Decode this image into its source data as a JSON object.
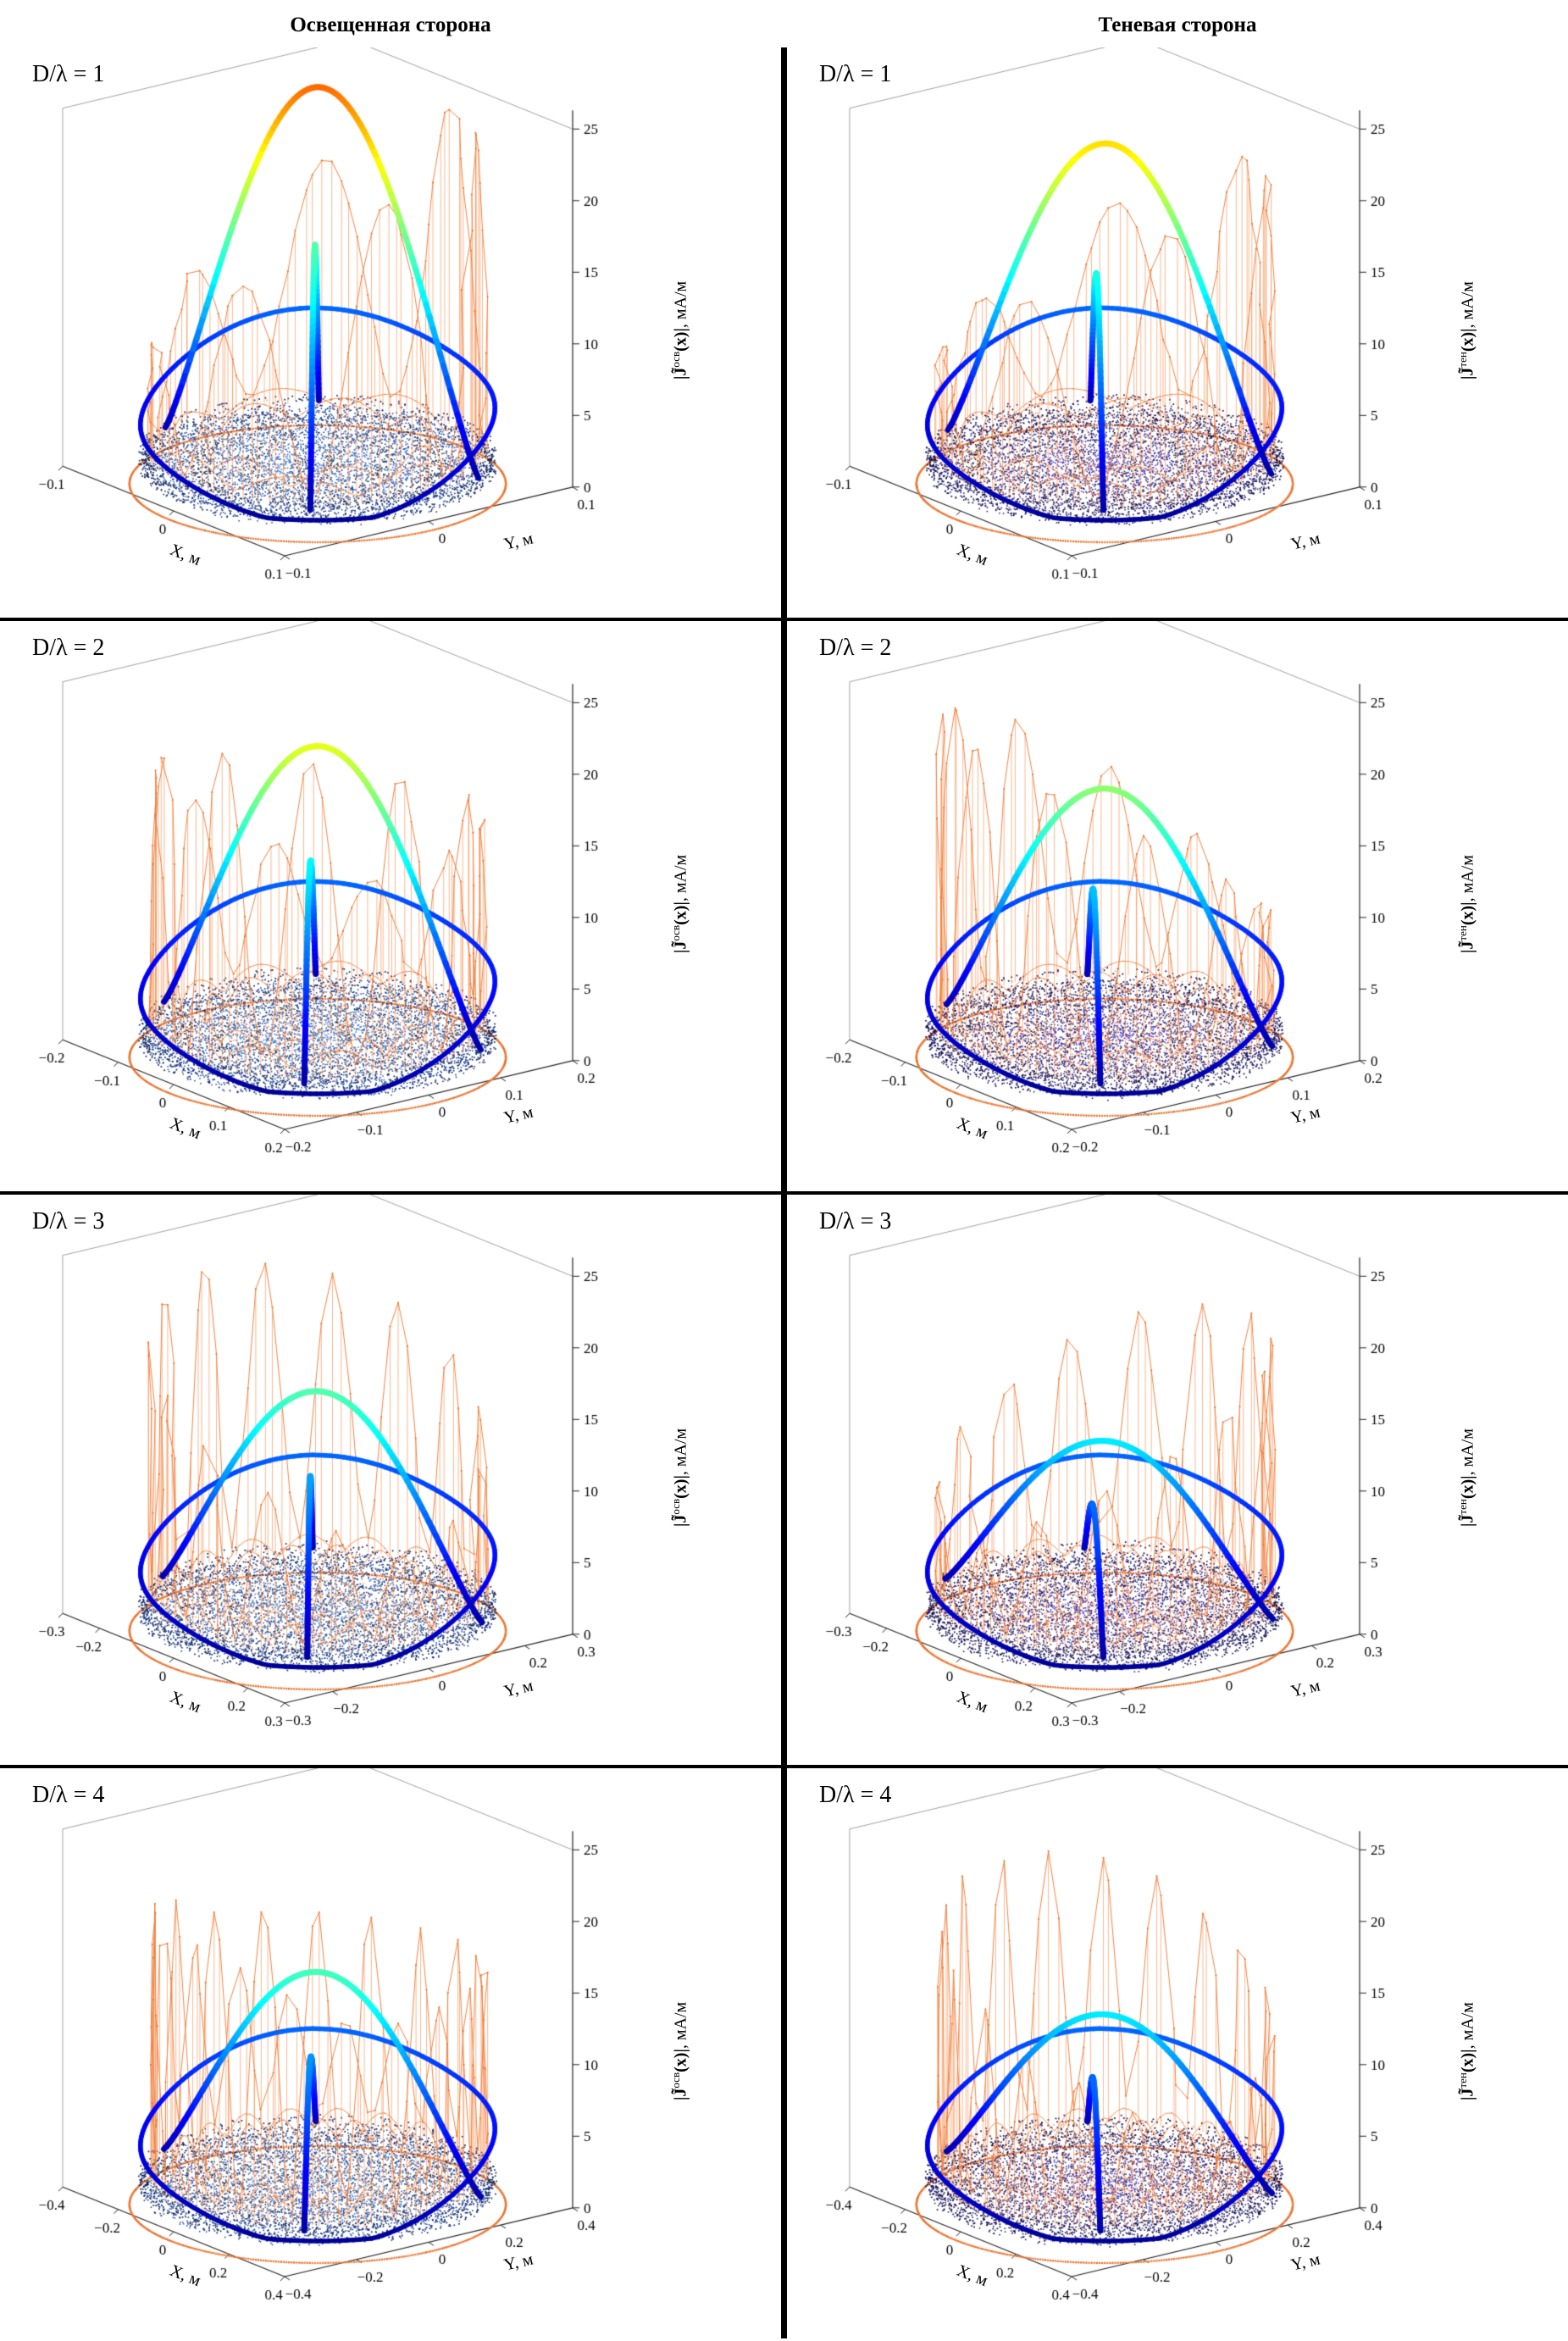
{
  "figure": {
    "column_titles": [
      "Освещенная сторона",
      "Теневая сторона"
    ],
    "row_labels": [
      "D/λ = 1",
      "D/λ = 2",
      "D/λ = 3",
      "D/λ = 4"
    ]
  },
  "chart_data": [
    {
      "type": "scatter",
      "projection": "3d",
      "title": "D/λ = 1",
      "column": "Освещенная сторона",
      "xlabel": "X, м",
      "ylabel": "Y, м",
      "zlabel": "|J̃осв(x)|, мА/м",
      "zlabel_parts": {
        "p1": "|J̃",
        "sup": "осв",
        "p2": "(x)|",
        "p3": ", мА/м"
      },
      "xlim": [
        -0.1,
        0.1
      ],
      "ylim": [
        -0.1,
        0.1
      ],
      "zlim": [
        0,
        25
      ],
      "xticks": [
        -0.1,
        0,
        0.1
      ],
      "yticks": [
        -0.1,
        0,
        0.1
      ],
      "zticks": [
        0,
        5,
        10,
        15,
        20,
        25
      ],
      "series": {
        "disk_cloud": {
          "desc": "плотное облако точек тока на диске",
          "palette": "blue",
          "z_level_max": 3
        },
        "base_ring": {
          "color": "#f5823f",
          "radius_m": 0.1,
          "z": 0
        },
        "rim_stems": {
          "color": "#ee7c3a",
          "n_lobes": 7,
          "peak": 25
        },
        "cut_arches": {
          "colormap": "jet",
          "peaks": [
            27,
            16
          ]
        },
        "rim_loop": {
          "colormap": "jet",
          "height_range": [
            1,
            7.5
          ]
        }
      },
      "render": {
        "seed": 11,
        "disk_palette": "blue",
        "m": 7,
        "ripples": 3,
        "disk_freq": 3.5,
        "speckles": 260,
        "stem_max": 25,
        "arches": [
          [
            27,
            202,
            28
          ],
          [
            16,
            142,
            320
          ]
        ]
      }
    },
    {
      "type": "scatter",
      "projection": "3d",
      "title": "D/λ = 1",
      "column": "Теневая сторона",
      "xlabel": "X, м",
      "ylabel": "Y, м",
      "zlabel": "|J̃тен(x)|, мА/м",
      "zlabel_parts": {
        "p1": "|J̃",
        "sup": "тен",
        "p2": "(x)|",
        "p3": ", мА/м"
      },
      "xlim": [
        -0.1,
        0.1
      ],
      "ylim": [
        -0.1,
        0.1
      ],
      "zlim": [
        0,
        25
      ],
      "xticks": [
        -0.1,
        0,
        0.1
      ],
      "yticks": [
        -0.1,
        0,
        0.1
      ],
      "zticks": [
        0,
        5,
        10,
        15,
        20,
        25
      ],
      "series": {
        "disk_cloud": {
          "desc": "плотное облако точек тока на диске",
          "palette": "indigo",
          "z_level_max": 3
        },
        "base_ring": {
          "color": "#f5823f",
          "radius_m": 0.1,
          "z": 0
        },
        "rim_stems": {
          "color": "#ee7c3a",
          "n_lobes": 7,
          "peak": 22
        },
        "cut_arches": {
          "colormap": "jet",
          "peaks": [
            23,
            14
          ]
        },
        "rim_loop": {
          "colormap": "jet",
          "height_range": [
            1,
            7.5
          ]
        }
      },
      "render": {
        "seed": 22,
        "disk_palette": "indigo",
        "m": 7,
        "ripples": 3,
        "disk_freq": 3.5,
        "speckles": 900,
        "stem_max": 22,
        "arches": [
          [
            23,
            205,
            33
          ],
          [
            14,
            147,
            322
          ]
        ]
      }
    },
    {
      "type": "scatter",
      "projection": "3d",
      "title": "D/λ = 2",
      "column": "Освещенная сторона",
      "xlabel": "X, м",
      "ylabel": "Y, м",
      "zlabel": "|J̃осв(x)|, мА/м",
      "zlabel_parts": {
        "p1": "|J̃",
        "sup": "осв",
        "p2": "(x)|",
        "p3": ", мА/м"
      },
      "xlim": [
        -0.2,
        0.2
      ],
      "ylim": [
        -0.2,
        0.2
      ],
      "zlim": [
        0,
        25
      ],
      "xticks": [
        -0.2,
        -0.1,
        0,
        0.1,
        0.2
      ],
      "yticks": [
        -0.2,
        -0.1,
        0,
        0.1,
        0.2
      ],
      "zticks": [
        0,
        5,
        10,
        15,
        20,
        25
      ],
      "series": {
        "disk_cloud": {
          "desc": "плотное облако точек тока на диске",
          "palette": "blue",
          "z_level_max": 3
        },
        "base_ring": {
          "color": "#f5823f",
          "radius_m": 0.2,
          "z": 0
        },
        "rim_stems": {
          "color": "#ee7c3a",
          "n_lobes": 11,
          "peak": 24
        },
        "cut_arches": {
          "colormap": "jet",
          "peaks": [
            21,
            13
          ]
        },
        "rim_loop": {
          "colormap": "jet",
          "height_range": [
            1,
            7.5
          ]
        }
      },
      "render": {
        "seed": 33,
        "disk_palette": "blue",
        "m": 11,
        "ripples": 5,
        "disk_freq": 5,
        "speckles": 650,
        "stem_max": 24,
        "arches": [
          [
            21,
            203,
            30
          ],
          [
            13,
            143,
            318
          ]
        ]
      }
    },
    {
      "type": "scatter",
      "projection": "3d",
      "title": "D/λ = 2",
      "column": "Теневая сторона",
      "xlabel": "X, м",
      "ylabel": "Y, м",
      "zlabel": "|J̃тен(x)|, мА/м",
      "zlabel_parts": {
        "p1": "|J̃",
        "sup": "тен",
        "p2": "(x)|",
        "p3": ", мА/м"
      },
      "xlim": [
        -0.2,
        0.2
      ],
      "ylim": [
        -0.2,
        0.2
      ],
      "zlim": [
        0,
        25
      ],
      "xticks": [
        -0.2,
        -0.1,
        0,
        0.1,
        0.2
      ],
      "yticks": [
        -0.2,
        -0.1,
        0,
        0.1,
        0.2
      ],
      "zticks": [
        0,
        5,
        10,
        15,
        20,
        25
      ],
      "series": {
        "disk_cloud": {
          "desc": "плотное облако точек тока на диске",
          "palette": "indigo",
          "z_level_max": 3
        },
        "base_ring": {
          "color": "#f5823f",
          "radius_m": 0.2,
          "z": 0
        },
        "rim_stems": {
          "color": "#ee7c3a",
          "n_lobes": 11,
          "peak": 24
        },
        "cut_arches": {
          "colormap": "jet",
          "peaks": [
            18,
            11
          ]
        },
        "rim_loop": {
          "colormap": "jet",
          "height_range": [
            1,
            7.5
          ]
        }
      },
      "render": {
        "seed": 44,
        "disk_palette": "indigo",
        "m": 11,
        "ripples": 5,
        "disk_freq": 5,
        "speckles": 1000,
        "stem_max": 24,
        "arches": [
          [
            18,
            206,
            34
          ],
          [
            11,
            148,
            321
          ]
        ]
      }
    },
    {
      "type": "scatter",
      "projection": "3d",
      "title": "D/λ = 3",
      "column": "Освещенная сторона",
      "xlabel": "X, м",
      "ylabel": "Y, м",
      "zlabel": "|J̃осв(x)|, мА/м",
      "zlabel_parts": {
        "p1": "|J̃",
        "sup": "осв",
        "p2": "(x)|",
        "p3": ", мА/м"
      },
      "xlim": [
        -0.3,
        0.3
      ],
      "ylim": [
        -0.3,
        0.3
      ],
      "zlim": [
        0,
        25
      ],
      "xticks": [
        -0.3,
        -0.2,
        0,
        0.2,
        0.3
      ],
      "yticks": [
        -0.3,
        -0.2,
        0,
        0.2,
        0.3
      ],
      "zticks": [
        0,
        5,
        10,
        15,
        20,
        25
      ],
      "series": {
        "disk_cloud": {
          "desc": "плотное облако точек тока на диске",
          "palette": "blue",
          "z_level_max": 3
        },
        "base_ring": {
          "color": "#f5823f",
          "radius_m": 0.3,
          "z": 0
        },
        "rim_stems": {
          "color": "#ee7c3a",
          "n_lobes": 15,
          "peak": 22
        },
        "cut_arches": {
          "colormap": "jet",
          "peaks": [
            16,
            10
          ]
        },
        "rim_loop": {
          "colormap": "jet",
          "height_range": [
            1,
            7.5
          ]
        }
      },
      "render": {
        "seed": 55,
        "disk_palette": "blue",
        "m": 15,
        "ripples": 7,
        "disk_freq": 7,
        "speckles": 800,
        "stem_max": 22,
        "arches": [
          [
            16,
            204,
            31
          ],
          [
            10,
            144,
            319
          ]
        ]
      }
    },
    {
      "type": "scatter",
      "projection": "3d",
      "title": "D/λ = 3",
      "column": "Теневая сторона",
      "xlabel": "X, м",
      "ylabel": "Y, м",
      "zlabel": "|J̃тен(x)|, мА/м",
      "zlabel_parts": {
        "p1": "|J̃",
        "sup": "тен",
        "p2": "(x)|",
        "p3": ", мА/м"
      },
      "xlim": [
        -0.3,
        0.3
      ],
      "ylim": [
        -0.3,
        0.3
      ],
      "zlim": [
        0,
        25
      ],
      "xticks": [
        -0.3,
        -0.2,
        0,
        0.2,
        0.3
      ],
      "yticks": [
        -0.3,
        -0.2,
        0,
        0.2,
        0.3
      ],
      "zticks": [
        0,
        5,
        10,
        15,
        20,
        25
      ],
      "series": {
        "disk_cloud": {
          "desc": "плотное облако точек тока на диске",
          "palette": "indigo",
          "z_level_max": 3
        },
        "base_ring": {
          "color": "#f5823f",
          "radius_m": 0.3,
          "z": 0
        },
        "rim_stems": {
          "color": "#ee7c3a",
          "n_lobes": 15,
          "peak": 20
        },
        "cut_arches": {
          "colormap": "jet",
          "peaks": [
            12.5,
            8
          ]
        },
        "rim_loop": {
          "colormap": "jet",
          "height_range": [
            1,
            7.5
          ]
        }
      },
      "render": {
        "seed": 66,
        "disk_palette": "indigo",
        "m": 15,
        "ripples": 7,
        "disk_freq": 7,
        "speckles": 1100,
        "stem_max": 20,
        "arches": [
          [
            12.5,
            207,
            35
          ],
          [
            8,
            149,
            322
          ]
        ]
      }
    },
    {
      "type": "scatter",
      "projection": "3d",
      "title": "D/λ = 4",
      "column": "Освещенная сторона",
      "xlabel": "X, м",
      "ylabel": "Y, м",
      "zlabel": "|J̃осв(x)|, мА/м",
      "zlabel_parts": {
        "p1": "|J̃",
        "sup": "осв",
        "p2": "(x)|",
        "p3": ", мА/м"
      },
      "xlim": [
        -0.4,
        0.4
      ],
      "ylim": [
        -0.4,
        0.4
      ],
      "zlim": [
        0,
        25
      ],
      "xticks": [
        -0.4,
        -0.2,
        0,
        0.2,
        0.4
      ],
      "yticks": [
        -0.4,
        -0.2,
        0,
        0.2,
        0.4
      ],
      "zticks": [
        0,
        5,
        10,
        15,
        20,
        25
      ],
      "series": {
        "disk_cloud": {
          "desc": "плотное облако точек тока на диске",
          "palette": "blue",
          "z_level_max": 3
        },
        "base_ring": {
          "color": "#f5823f",
          "radius_m": 0.4,
          "z": 0
        },
        "rim_stems": {
          "color": "#ee7c3a",
          "n_lobes": 19,
          "peak": 24
        },
        "cut_arches": {
          "colormap": "jet",
          "peaks": [
            15.5,
            9.5
          ]
        },
        "rim_loop": {
          "colormap": "jet",
          "height_range": [
            1,
            7.5
          ]
        }
      },
      "render": {
        "seed": 77,
        "disk_palette": "blue",
        "m": 19,
        "ripples": 8,
        "disk_freq": 9,
        "speckles": 900,
        "stem_max": 24,
        "arches": [
          [
            15.5,
            203,
            30
          ],
          [
            9.5,
            143,
            318
          ]
        ]
      }
    },
    {
      "type": "scatter",
      "projection": "3d",
      "title": "D/λ = 4",
      "column": "Теневая сторона",
      "xlabel": "X, м",
      "ylabel": "Y, м",
      "zlabel": "|J̃тен(x)|, мА/м",
      "zlabel_parts": {
        "p1": "|J̃",
        "sup": "тен",
        "p2": "(x)|",
        "p3": ", мА/м"
      },
      "xlim": [
        -0.4,
        0.4
      ],
      "ylim": [
        -0.4,
        0.4
      ],
      "zlim": [
        0,
        25
      ],
      "xticks": [
        -0.4,
        -0.2,
        0,
        0.2,
        0.4
      ],
      "yticks": [
        -0.4,
        -0.2,
        0,
        0.2,
        0.4
      ],
      "zticks": [
        0,
        5,
        10,
        15,
        20,
        25
      ],
      "series": {
        "disk_cloud": {
          "desc": "плотное облако точек тока на диске",
          "palette": "indigo",
          "z_level_max": 3
        },
        "base_ring": {
          "color": "#f5823f",
          "radius_m": 0.4,
          "z": 0
        },
        "rim_stems": {
          "color": "#ee7c3a",
          "n_lobes": 19,
          "peak": 21
        },
        "cut_arches": {
          "colormap": "jet",
          "peaks": [
            12.5,
            8
          ]
        },
        "rim_loop": {
          "colormap": "jet",
          "height_range": [
            1,
            7.5
          ]
        }
      },
      "render": {
        "seed": 88,
        "disk_palette": "indigo",
        "m": 19,
        "ripples": 8,
        "disk_freq": 9,
        "speckles": 1200,
        "stem_max": 21,
        "arches": [
          [
            12.5,
            206,
            34
          ],
          [
            8,
            148,
            321
          ]
        ]
      }
    }
  ]
}
